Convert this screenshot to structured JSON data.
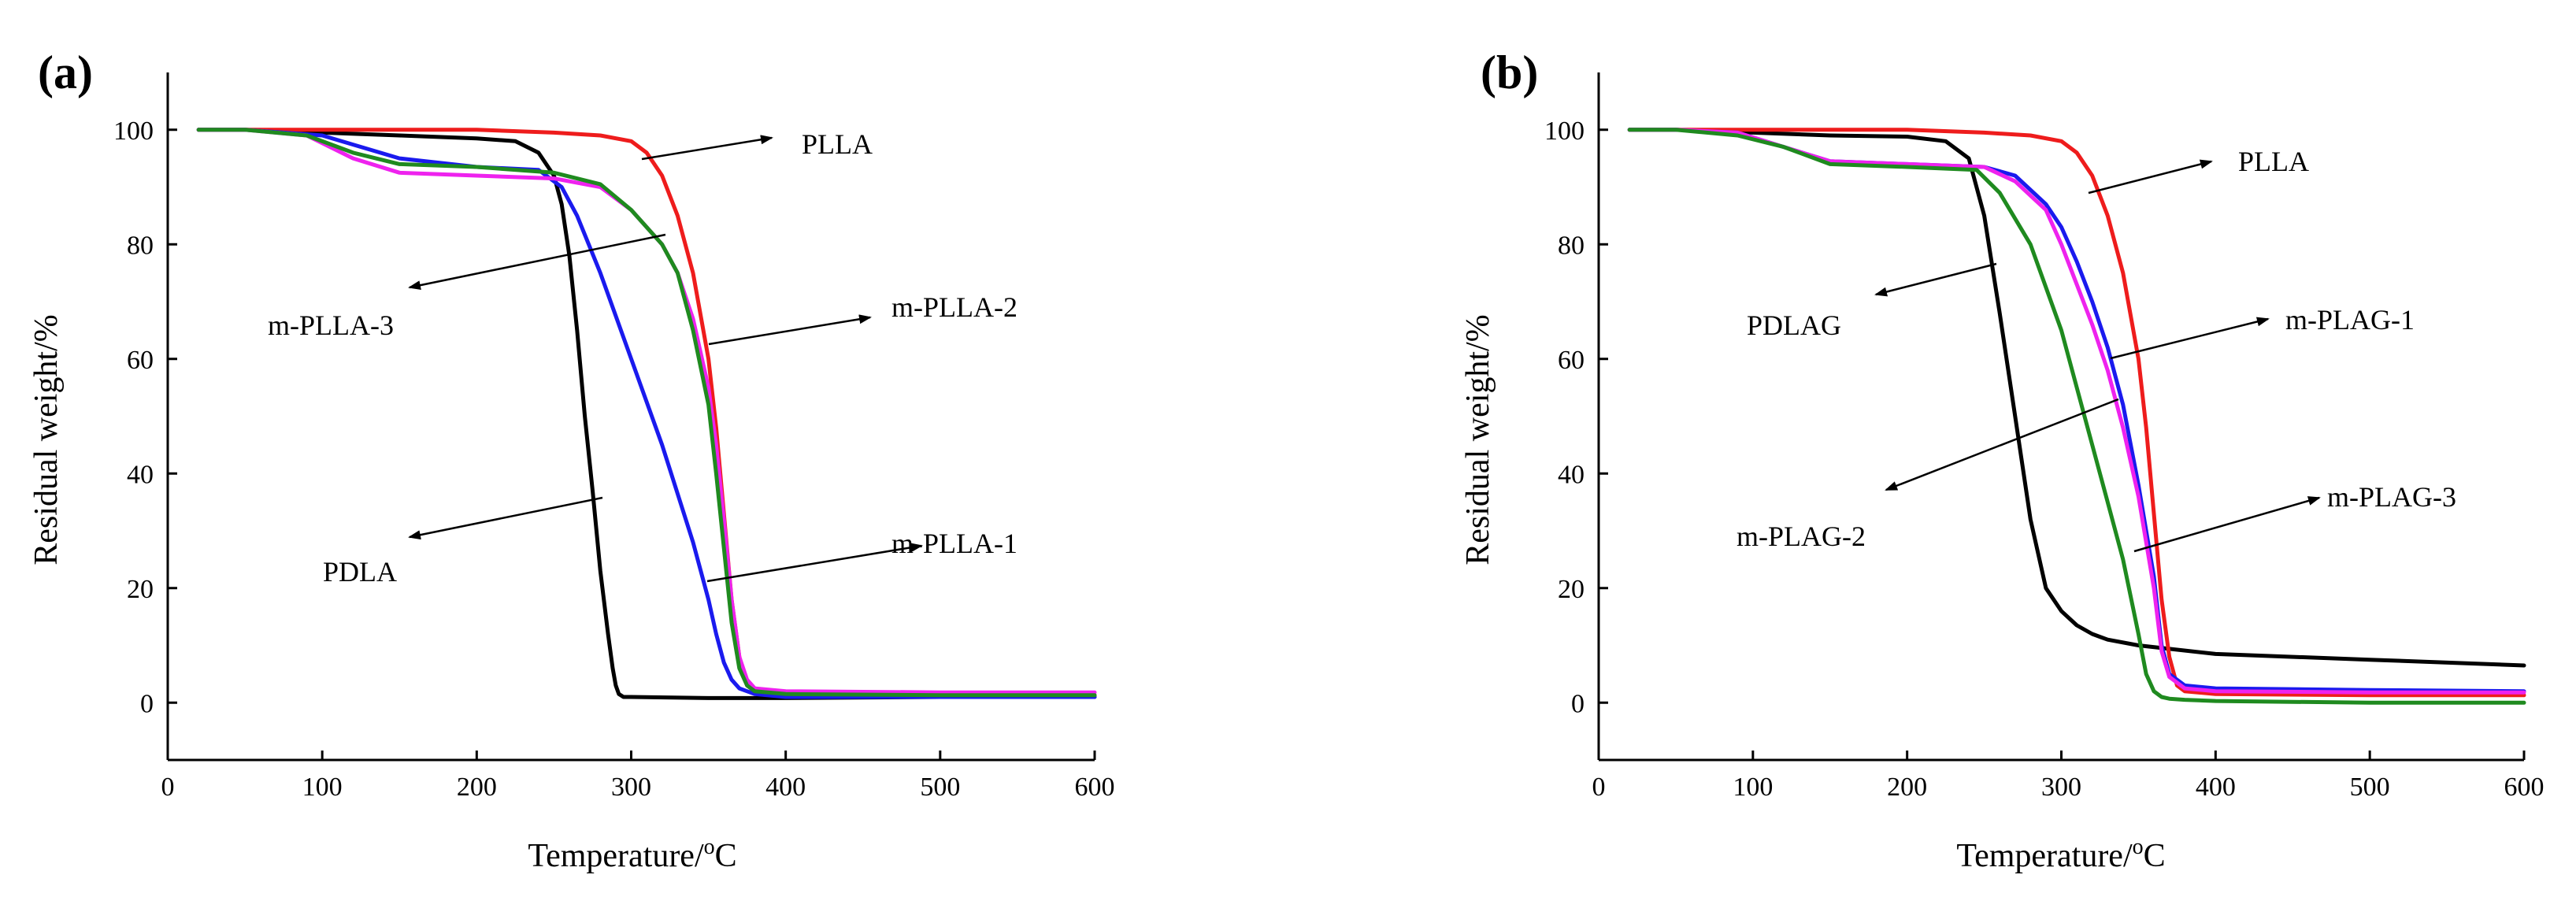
{
  "chart_data": [
    {
      "type": "line",
      "panel_label": "(a)",
      "xlabel_main": "Temperature/",
      "xlabel_sup": "o",
      "xlabel_unit": "C",
      "ylabel": "Residual weight/%",
      "xlim": [
        0,
        600
      ],
      "ylim": [
        -10,
        110
      ],
      "xticks": [
        0,
        100,
        200,
        300,
        400,
        500,
        600
      ],
      "yticks": [
        0,
        20,
        40,
        60,
        80,
        100
      ],
      "series": [
        {
          "name": "PDLA",
          "color": "#000000",
          "x": [
            20,
            50,
            100,
            150,
            200,
            225,
            240,
            250,
            255,
            260,
            265,
            270,
            275,
            280,
            285,
            288,
            290,
            292,
            295,
            300,
            350,
            400,
            500,
            600
          ],
          "y": [
            100,
            100,
            99.5,
            99,
            98.5,
            98,
            96,
            92,
            87,
            78,
            65,
            50,
            37,
            23,
            12,
            6,
            3,
            1.5,
            1,
            1,
            0.8,
            0.8,
            1,
            1
          ]
        },
        {
          "name": "PLLA",
          "color": "#ee1c1c",
          "x": [
            20,
            100,
            200,
            250,
            280,
            300,
            310,
            320,
            330,
            340,
            350,
            355,
            360,
            365,
            370,
            375,
            380,
            400,
            500,
            600
          ],
          "y": [
            100,
            100,
            100,
            99.5,
            99,
            98,
            96,
            92,
            85,
            75,
            60,
            48,
            33,
            18,
            8,
            3,
            2,
            1.5,
            1.3,
            1.3
          ]
        },
        {
          "name": "m-PLLA-1",
          "color": "#1a1aee",
          "x": [
            20,
            50,
            100,
            150,
            200,
            240,
            255,
            265,
            280,
            300,
            320,
            340,
            350,
            355,
            360,
            365,
            370,
            380,
            400,
            500,
            600
          ],
          "y": [
            100,
            100,
            99,
            95,
            93.5,
            93,
            90,
            85,
            75,
            60,
            45,
            28,
            18,
            12,
            7,
            4,
            2.5,
            1.5,
            1,
            1,
            1
          ]
        },
        {
          "name": "m-PLLA-2",
          "color": "#ee22ee",
          "x": [
            20,
            50,
            90,
            120,
            150,
            200,
            250,
            280,
            300,
            320,
            330,
            340,
            350,
            355,
            360,
            365,
            370,
            375,
            380,
            400,
            500,
            600
          ],
          "y": [
            100,
            100,
            99,
            95,
            92.5,
            92,
            91.5,
            90,
            86,
            80,
            75,
            67,
            55,
            45,
            32,
            18,
            8,
            4,
            2.5,
            2,
            1.8,
            1.8
          ]
        },
        {
          "name": "m-PLLA-3",
          "color": "#1f8a1f",
          "x": [
            20,
            50,
            90,
            120,
            150,
            200,
            250,
            280,
            300,
            320,
            330,
            340,
            350,
            355,
            360,
            365,
            370,
            375,
            380,
            400,
            500,
            600
          ],
          "y": [
            100,
            100,
            99,
            96,
            94,
            93.5,
            92.5,
            90.5,
            86,
            80,
            75,
            65,
            52,
            40,
            27,
            14,
            6,
            3,
            2,
            1.5,
            1.3,
            1.3
          ]
        }
      ],
      "annotations": [
        {
          "text": "PLLA"
        },
        {
          "text": "m-PLLA-3"
        },
        {
          "text": "m-PLLA-2"
        },
        {
          "text": "PDLA"
        },
        {
          "text": "m-PLLA-1"
        }
      ]
    },
    {
      "type": "line",
      "panel_label": "(b)",
      "xlabel_main": "Temperature/",
      "xlabel_sup": "o",
      "xlabel_unit": "C",
      "ylabel": "Residual weight/%",
      "xlim": [
        0,
        600
      ],
      "ylim": [
        -10,
        110
      ],
      "xticks": [
        0,
        100,
        200,
        300,
        400,
        500,
        600
      ],
      "yticks": [
        0,
        20,
        40,
        60,
        80,
        100
      ],
      "series": [
        {
          "name": "PDLAG",
          "color": "#000000",
          "x": [
            20,
            50,
            100,
            150,
            200,
            225,
            240,
            250,
            260,
            270,
            280,
            290,
            300,
            310,
            320,
            330,
            350,
            400,
            500,
            600
          ],
          "y": [
            100,
            100,
            99.5,
            99,
            98.8,
            98,
            95,
            85,
            68,
            50,
            32,
            20,
            16,
            13.5,
            12,
            11,
            10,
            8.5,
            7.5,
            6.5
          ]
        },
        {
          "name": "PLLA",
          "color": "#ee1c1c",
          "x": [
            20,
            100,
            200,
            250,
            280,
            300,
            310,
            320,
            330,
            340,
            350,
            355,
            360,
            365,
            370,
            375,
            380,
            400,
            500,
            600
          ],
          "y": [
            100,
            100,
            100,
            99.5,
            99,
            98,
            96,
            92,
            85,
            75,
            60,
            48,
            33,
            18,
            8,
            3,
            2,
            1.5,
            1.3,
            1.3
          ]
        },
        {
          "name": "m-PLAG-1",
          "color": "#1a1aee",
          "x": [
            20,
            50,
            90,
            120,
            150,
            200,
            250,
            270,
            290,
            300,
            310,
            320,
            330,
            340,
            350,
            360,
            365,
            370,
            380,
            400,
            500,
            600
          ],
          "y": [
            100,
            100,
            99.5,
            97,
            94.5,
            94,
            93.5,
            92,
            87,
            83,
            77,
            70,
            62,
            52,
            38,
            22,
            10,
            5,
            3,
            2.5,
            2.2,
            2
          ]
        },
        {
          "name": "m-PLAG-2",
          "color": "#ee22ee",
          "x": [
            20,
            50,
            90,
            120,
            150,
            200,
            250,
            270,
            290,
            300,
            310,
            320,
            330,
            340,
            350,
            360,
            365,
            370,
            380,
            400,
            500,
            600
          ],
          "y": [
            100,
            100,
            99.5,
            97,
            94.5,
            94,
            93.5,
            91,
            86,
            80,
            73,
            66,
            58,
            48,
            36,
            20,
            9,
            4.5,
            2.5,
            2,
            1.8,
            1.8
          ]
        },
        {
          "name": "m-PLAG-3",
          "color": "#1f8a1f",
          "x": [
            20,
            50,
            90,
            120,
            150,
            200,
            245,
            260,
            280,
            300,
            310,
            320,
            330,
            340,
            350,
            355,
            360,
            365,
            370,
            380,
            400,
            500,
            600
          ],
          "y": [
            100,
            100,
            99,
            97,
            94,
            93.5,
            93,
            89,
            80,
            65,
            55,
            45,
            35,
            25,
            12,
            5,
            2,
            1,
            0.7,
            0.5,
            0.3,
            0,
            0
          ]
        }
      ],
      "annotations": [
        {
          "text": "PLLA"
        },
        {
          "text": "PDLAG"
        },
        {
          "text": "m-PLAG-1"
        },
        {
          "text": "m-PLAG-2"
        },
        {
          "text": "m-PLAG-3"
        }
      ]
    }
  ]
}
